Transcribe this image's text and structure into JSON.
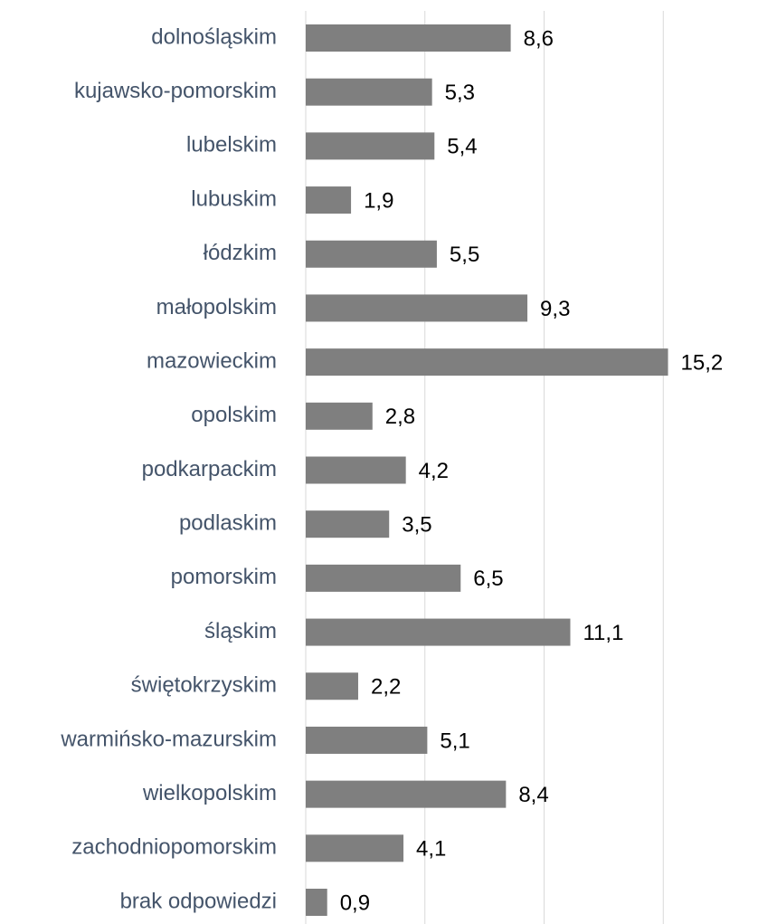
{
  "chart_data": {
    "type": "bar",
    "orientation": "horizontal",
    "categories": [
      "dolnośląskim",
      "kujawsko-pomorskim",
      "lubelskim",
      "lubuskim",
      "łódzkim",
      "małopolskim",
      "mazowieckim",
      "opolskim",
      "podkarpackim",
      "podlaskim",
      "pomorskim",
      "śląskim",
      "świętokrzyskim",
      "warmińsko-mazurskim",
      "wielkopolskim",
      "zachodniopomorskim",
      "brak odpowiedzi"
    ],
    "values": [
      8.6,
      5.3,
      5.4,
      1.9,
      5.5,
      9.3,
      15.2,
      2.8,
      4.2,
      3.5,
      6.5,
      11.1,
      2.2,
      5.1,
      8.4,
      4.1,
      0.9
    ],
    "value_labels": [
      "8,6",
      "5,3",
      "5,4",
      "1,9",
      "5,5",
      "9,3",
      "15,2",
      "2,8",
      "4,2",
      "3,5",
      "6,5",
      "11,1",
      "2,2",
      "5,1",
      "8,4",
      "4,1",
      "0,9"
    ],
    "color": "#7f7f7f",
    "xlim": [
      0,
      16
    ],
    "xticks": [
      0,
      5,
      10,
      15
    ],
    "grid": true
  }
}
